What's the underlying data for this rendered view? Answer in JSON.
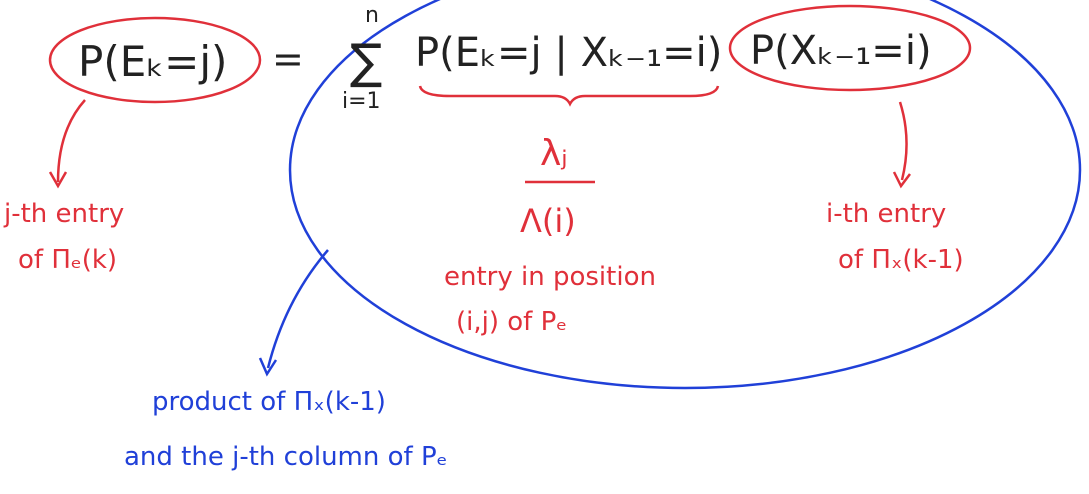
{
  "colors": {
    "ink": "#222222",
    "annotation_red": "#e0303a",
    "annotation_blue": "#2040d8"
  },
  "formula": {
    "lhs": "P(Eₖ=j)",
    "equals": "=",
    "sum_symbol": "∑",
    "sum_upper": "n",
    "sum_lower": "i=1",
    "conditional": "P(Eₖ=j | Xₖ₋₁=i)",
    "prior": "P(Xₖ₋₁=i)"
  },
  "annotations": {
    "lambda_top": "λⱼ",
    "lambda_bottom": "Λ(i)",
    "entry_position_line1": "entry in position",
    "entry_position_line2": "(i,j) of Pₑ",
    "left_line1": "j-th entry",
    "left_line2": "of Πₑ(k)",
    "right_line1": "i-th entry",
    "right_line2": "of Πₓ(k-1)",
    "product_line1": "product of Πₓ(k-1)",
    "product_line2": "and the j-th column of Pₑ"
  }
}
